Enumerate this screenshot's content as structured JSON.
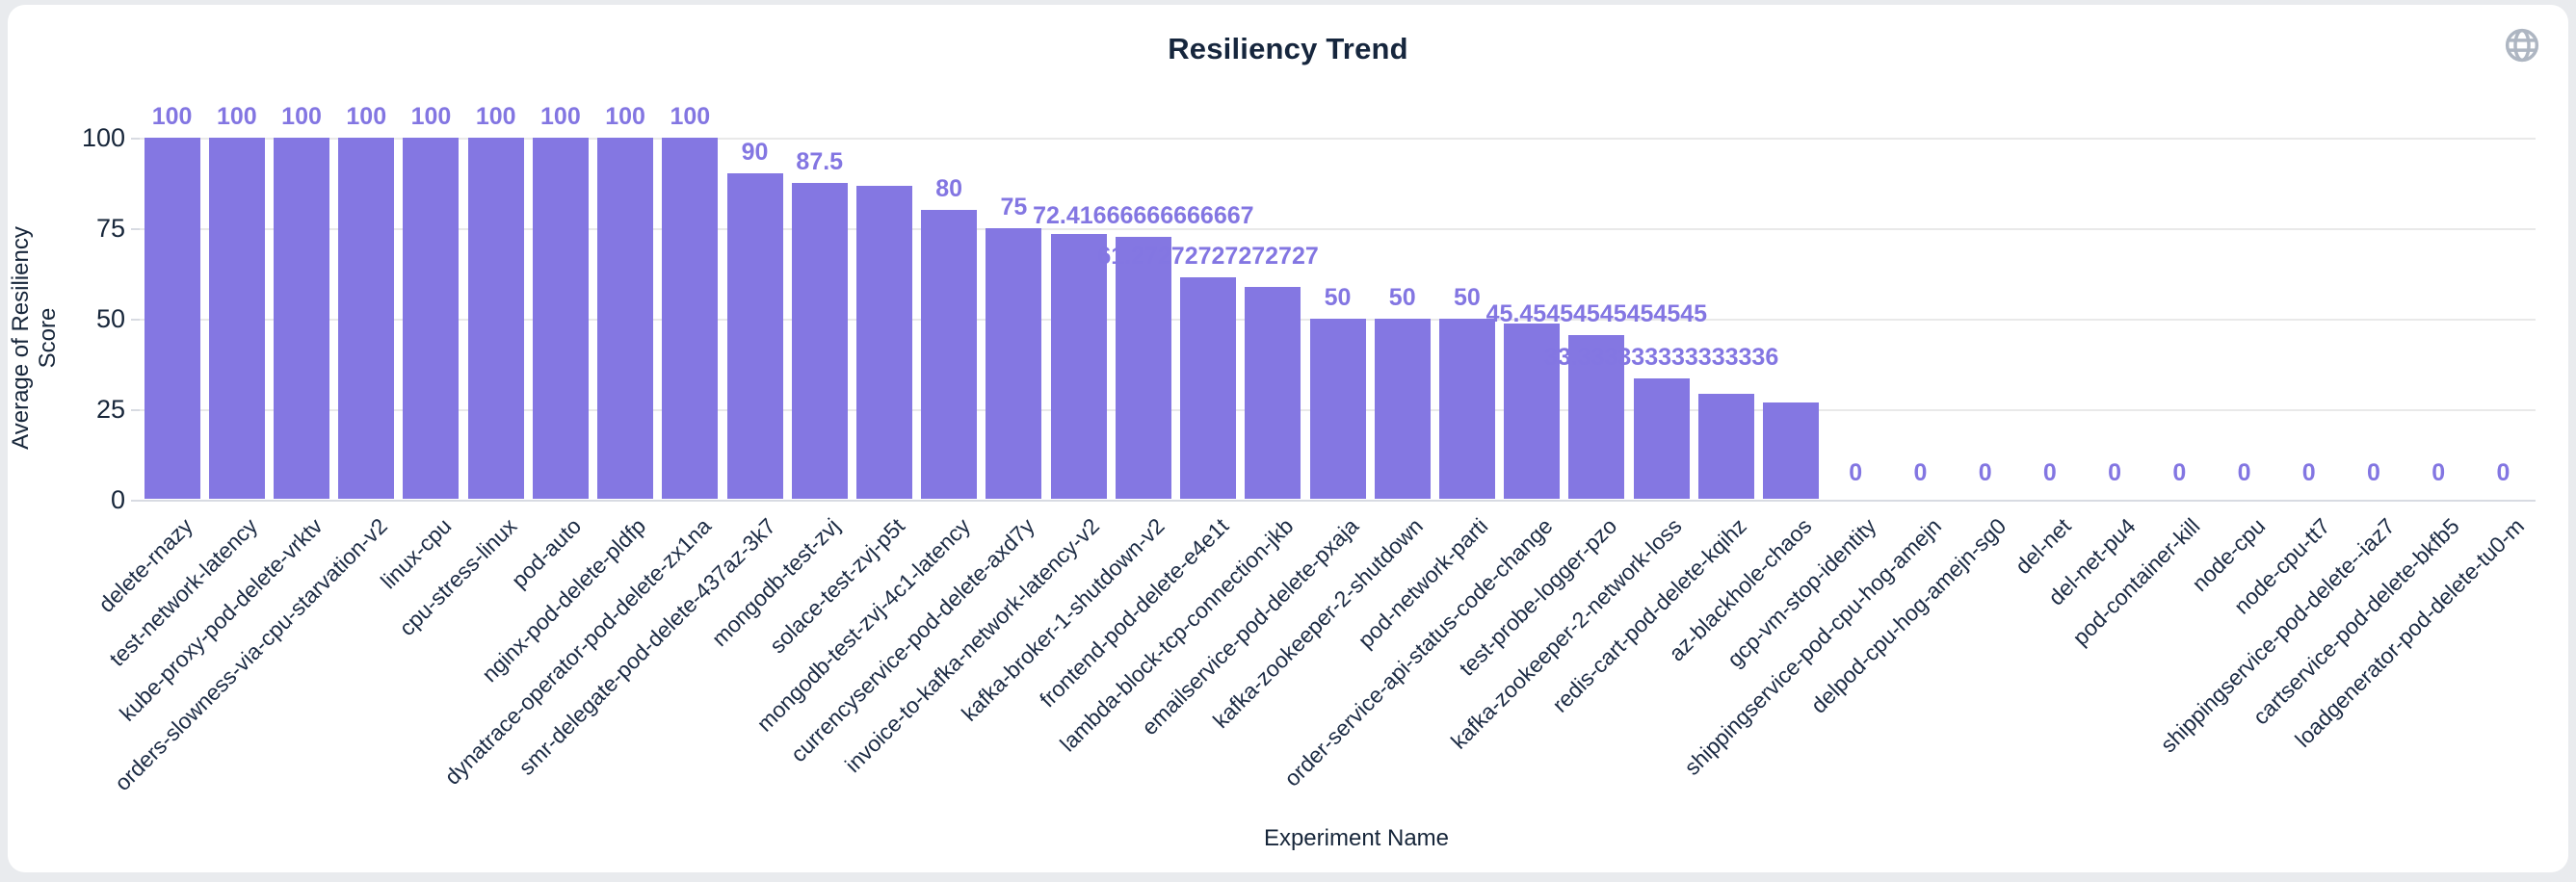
{
  "page": {
    "background_color": "#e9ebee",
    "card_background_color": "#ffffff"
  },
  "header": {
    "title": "Resiliency Trend",
    "globe_icon_color": "#aeb6c2"
  },
  "chart_data": {
    "type": "bar",
    "title": "Resiliency Trend",
    "xlabel": "Experiment Name",
    "ylabel": "Average of Resiliency Score",
    "ylim": [
      0,
      100
    ],
    "yticks": [
      0,
      25,
      50,
      75,
      100
    ],
    "grid": true,
    "legend": "none",
    "bar_color": "#8477e2",
    "value_label_color": "#8376e2",
    "axis_text_color": "#17263a",
    "categories": [
      "delete-rnazy",
      "test-network-latency",
      "kube-proxy-pod-delete-vrktv",
      "orders-slowness-via-cpu-starvation-v2",
      "linux-cpu",
      "cpu-stress-linux",
      "pod-auto",
      "nginx-pod-delete-pldfp",
      "dynatrace-operator-pod-delete-zx1na",
      "smr-delegate-pod-delete-437az-3k7",
      "mongodb-test-zvj",
      "solace-test-zvj-p5t",
      "mongodb-test-zvj-4c1-latency",
      "currencyservice-pod-delete-axd7y",
      "invoice-to-kafka-network-latency-v2",
      "kafka-broker-1-shutdown-v2",
      "frontend-pod-delete-e4e1t",
      "lambda-block-tcp-connection-jkb",
      "emailservice-pod-delete-pxaja",
      "kafka-zookeeper-2-shutdown",
      "pod-network-parti",
      "order-service-api-status-code-change",
      "test-probe-logger-pzo",
      "kafka-zookeeper-2-network-loss",
      "redis-cart-pod-delete-kqihz",
      "az-blackhole-chaos",
      "gcp-vm-stop-identity",
      "shippingservice-pod-cpu-hog-amejn",
      "delpod-cpu-hog-amejn-sg0",
      "del-net",
      "del-net-pu4",
      "pod-container-kill",
      "node-cpu",
      "node-cpu-tt7",
      "shippingservice-pod-delete--iaz7",
      "cartservice-pod-delete-bkfb5",
      "loadgenerator-pod-delete-tu0-m"
    ],
    "values": [
      100,
      100,
      100,
      100,
      100,
      100,
      100,
      100,
      100,
      90,
      87.5,
      86.7,
      80,
      75,
      73.3,
      72.41666666666667,
      61.27272727272727,
      58.7,
      50,
      50,
      50,
      48.7,
      45.45454545454545,
      33.333333333333336,
      29.1,
      26.7,
      0,
      0,
      0,
      0,
      0,
      0,
      0,
      0,
      0,
      0,
      0
    ],
    "value_labels": [
      "100",
      "100",
      "100",
      "100",
      "100",
      "100",
      "100",
      "100",
      "100",
      "90",
      "87.5",
      null,
      "80",
      "75",
      null,
      "72.41666666666667",
      "61.27272727272727",
      null,
      "50",
      "50",
      "50",
      null,
      "45.45454545454545",
      "33.333333333333336",
      null,
      null,
      "0",
      "0",
      "0",
      "0",
      "0",
      "0",
      "0",
      "0",
      "0",
      "0",
      "0"
    ]
  }
}
